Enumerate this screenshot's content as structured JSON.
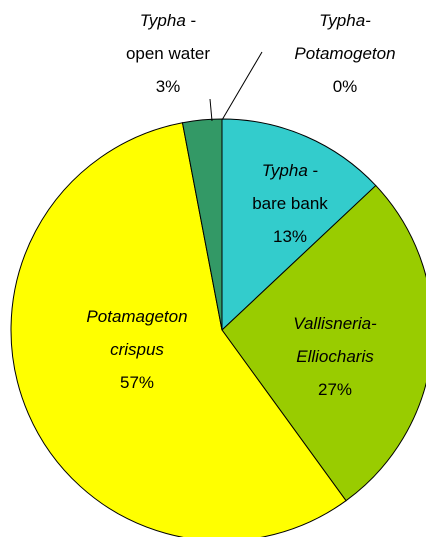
{
  "chart_data": {
    "type": "pie",
    "categories": [
      [
        [
          {
            "text": "Typha-",
            "italic": true
          }
        ],
        [
          {
            "text": "Potamogeton",
            "italic": true
          }
        ]
      ],
      [
        [
          {
            "text": "Typha",
            "italic": true
          },
          {
            "text": " -",
            "italic": false
          }
        ],
        [
          {
            "text": "bare bank",
            "italic": false
          }
        ]
      ],
      [
        [
          {
            "text": "Vallisneria-",
            "italic": true
          }
        ],
        [
          {
            "text": "Elliocharis",
            "italic": true
          }
        ]
      ],
      [
        [
          {
            "text": "Potamageton",
            "italic": true
          }
        ],
        [
          {
            "text": "crispus",
            "italic": true
          }
        ]
      ],
      [
        [
          {
            "text": "Typha",
            "italic": true
          },
          {
            "text": " -",
            "italic": false
          }
        ],
        [
          {
            "text": "open water",
            "italic": false
          }
        ]
      ]
    ],
    "values": [
      0,
      13,
      27,
      57,
      3
    ],
    "value_labels": [
      "0%",
      "13%",
      "27%",
      "57%",
      "3%"
    ],
    "colors": [
      "#33cccc",
      "#33cccc",
      "#99cc00",
      "#ffff00",
      "#339966"
    ]
  }
}
